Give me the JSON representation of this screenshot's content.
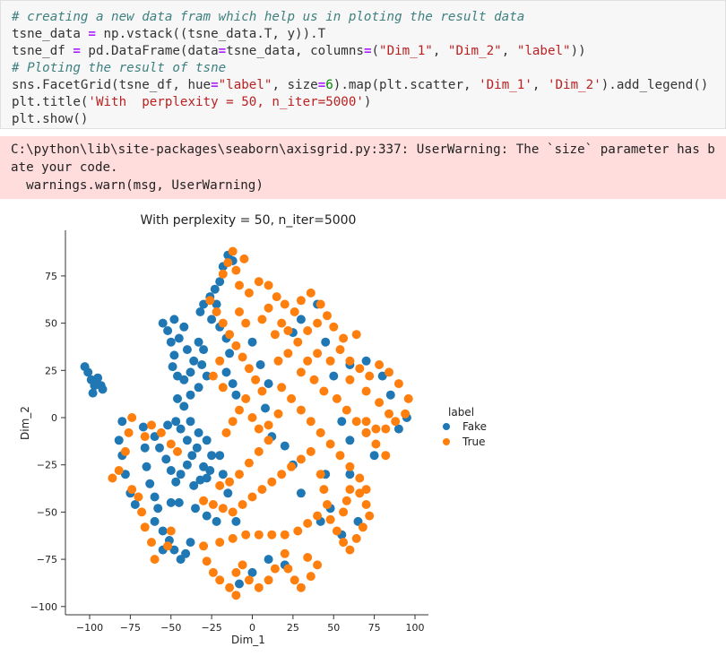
{
  "code_cell": {
    "line1": "# creating a new data fram which help us in ploting the result data",
    "line2_a": "tsne_data ",
    "line2_op": "=",
    "line2_b": " np.vstack((tsne_data.T, y)).T",
    "line3_a": "tsne_df ",
    "line3_op": "=",
    "line3_b": " pd.DataFrame(data",
    "line3_op2": "=",
    "line3_c": "tsne_data, columns",
    "line3_op3": "=",
    "line3_d": "(",
    "line3_s1": "\"Dim_1\"",
    "line3_e": ", ",
    "line3_s2": "\"Dim_2\"",
    "line3_f": ", ",
    "line3_s3": "\"label\"",
    "line3_g": "))",
    "line4": "# Ploting the result of tsne",
    "line5_a": "sns.FacetGrid(tsne_df, hue",
    "line5_op": "=",
    "line5_s1": "\"label\"",
    "line5_b": ", size",
    "line5_op2": "=",
    "line5_n": "6",
    "line5_c": ").map(plt.scatter, ",
    "line5_s2": "'Dim_1'",
    "line5_d": ", ",
    "line5_s3": "'Dim_2'",
    "line5_e": ").add_legend()",
    "line6_a": "plt.title(",
    "line6_s": "'With  perplexity = 50, n_iter=5000'",
    "line6_b": ")",
    "line7": "plt.show()"
  },
  "stderr": {
    "line1": "C:\\python\\lib\\site-packages\\seaborn\\axisgrid.py:337: UserWarning: The `size` parameter has b",
    "line2": "ate your code.",
    "line3": "  warnings.warn(msg, UserWarning)"
  },
  "chart_data": {
    "type": "scatter",
    "title": "With  perplexity = 50, n_iter=5000",
    "xlabel": "Dim_1",
    "ylabel": "Dim_2",
    "xlim": [
      -110,
      110
    ],
    "ylim": [
      -103,
      93
    ],
    "xticks": [
      -100,
      -75,
      -50,
      -25,
      0,
      25,
      50,
      75,
      100
    ],
    "xtick_labels": [
      "−100",
      "−75",
      "−50",
      "−25",
      "0",
      "25",
      "50",
      "75",
      "100"
    ],
    "yticks": [
      -100,
      -75,
      -50,
      -25,
      0,
      25,
      50,
      75
    ],
    "ytick_labels": [
      "−100",
      "−75",
      "−50",
      "−25",
      "0",
      "25",
      "50",
      "75"
    ],
    "grid": false,
    "legend_title": "label",
    "legend_placement": "right",
    "series": [
      {
        "name": "Fake",
        "color": "#1f77b4",
        "points": [
          [
            -103,
            27
          ],
          [
            -101,
            24
          ],
          [
            -99,
            20
          ],
          [
            -97,
            17
          ],
          [
            -95,
            21
          ],
          [
            -93,
            17
          ],
          [
            -92,
            15
          ],
          [
            -98,
            13
          ],
          [
            -80,
            -2
          ],
          [
            -82,
            -12
          ],
          [
            -80,
            -20
          ],
          [
            -78,
            -30
          ],
          [
            -75,
            -40
          ],
          [
            -72,
            -46
          ],
          [
            -67,
            -5
          ],
          [
            -66,
            -16
          ],
          [
            -65,
            -26
          ],
          [
            -63,
            -35
          ],
          [
            -60,
            -42
          ],
          [
            -58,
            -48
          ],
          [
            -60,
            -55
          ],
          [
            -55,
            -60
          ],
          [
            -51,
            -65
          ],
          [
            -48,
            -70
          ],
          [
            -44,
            -75
          ],
          [
            -41,
            -72
          ],
          [
            -38,
            -66
          ],
          [
            -55,
            -70
          ],
          [
            -60,
            -10
          ],
          [
            -57,
            -16
          ],
          [
            -53,
            -22
          ],
          [
            -50,
            -28
          ],
          [
            -47,
            -34
          ],
          [
            -44,
            -30
          ],
          [
            -40,
            -25
          ],
          [
            -37,
            -20
          ],
          [
            -34,
            -16
          ],
          [
            -30,
            -26
          ],
          [
            -36,
            -36
          ],
          [
            -32,
            -33
          ],
          [
            -28,
            -32
          ],
          [
            -40,
            -12
          ],
          [
            -44,
            -6
          ],
          [
            -47,
            -2
          ],
          [
            -52,
            -4
          ],
          [
            -38,
            -2
          ],
          [
            -33,
            -8
          ],
          [
            -28,
            -12
          ],
          [
            -25,
            -20
          ],
          [
            -26,
            -28
          ],
          [
            -55,
            50
          ],
          [
            -52,
            46
          ],
          [
            -50,
            40
          ],
          [
            -48,
            33
          ],
          [
            -49,
            27
          ],
          [
            -46,
            22
          ],
          [
            -42,
            20
          ],
          [
            -38,
            24
          ],
          [
            -36,
            30
          ],
          [
            -40,
            36
          ],
          [
            -45,
            42
          ],
          [
            -48,
            52
          ],
          [
            -42,
            48
          ],
          [
            -33,
            40
          ],
          [
            -30,
            36
          ],
          [
            -31,
            28
          ],
          [
            -28,
            22
          ],
          [
            -33,
            16
          ],
          [
            -38,
            12
          ],
          [
            -42,
            6
          ],
          [
            -46,
            10
          ],
          [
            -32,
            56
          ],
          [
            -30,
            60
          ],
          [
            -26,
            64
          ],
          [
            -23,
            68
          ],
          [
            -20,
            72
          ],
          [
            -18,
            80
          ],
          [
            -15,
            86
          ],
          [
            -12,
            83
          ],
          [
            -22,
            60
          ],
          [
            -25,
            52
          ],
          [
            -20,
            48
          ],
          [
            -16,
            42
          ],
          [
            -14,
            34
          ],
          [
            -16,
            24
          ],
          [
            -12,
            18
          ],
          [
            -10,
            12
          ],
          [
            -50,
            -45
          ],
          [
            -45,
            -45
          ],
          [
            -35,
            -48
          ],
          [
            -28,
            -52
          ],
          [
            -22,
            -55
          ],
          [
            -15,
            -40
          ],
          [
            -18,
            -30
          ],
          [
            -20,
            -20
          ],
          [
            -10,
            -55
          ],
          [
            0,
            -82
          ],
          [
            -8,
            -88
          ],
          [
            10,
            -75
          ],
          [
            20,
            -78
          ],
          [
            0,
            40
          ],
          [
            5,
            28
          ],
          [
            10,
            18
          ],
          [
            8,
            5
          ],
          [
            12,
            -10
          ],
          [
            20,
            -15
          ],
          [
            25,
            -25
          ],
          [
            30,
            -40
          ],
          [
            42,
            -55
          ],
          [
            55,
            -62
          ],
          [
            48,
            -48
          ],
          [
            60,
            -30
          ],
          [
            65,
            -55
          ],
          [
            25,
            45
          ],
          [
            30,
            52
          ],
          [
            40,
            60
          ],
          [
            45,
            40
          ],
          [
            50,
            22
          ],
          [
            60,
            28
          ],
          [
            70,
            30
          ],
          [
            80,
            22
          ],
          [
            85,
            12
          ],
          [
            95,
            0
          ],
          [
            90,
            -6
          ],
          [
            70,
            -8
          ],
          [
            60,
            -12
          ],
          [
            55,
            -2
          ],
          [
            45,
            -30
          ],
          [
            75,
            -20
          ]
        ]
      },
      {
        "name": "True",
        "color": "#ff7f0e",
        "points": [
          [
            -12,
            88
          ],
          [
            -15,
            82
          ],
          [
            -10,
            78
          ],
          [
            -5,
            84
          ],
          [
            -18,
            76
          ],
          [
            -8,
            70
          ],
          [
            -2,
            66
          ],
          [
            4,
            72
          ],
          [
            10,
            70
          ],
          [
            15,
            64
          ],
          [
            20,
            60
          ],
          [
            26,
            56
          ],
          [
            30,
            62
          ],
          [
            36,
            66
          ],
          [
            42,
            60
          ],
          [
            46,
            54
          ],
          [
            50,
            48
          ],
          [
            40,
            50
          ],
          [
            34,
            46
          ],
          [
            28,
            40
          ],
          [
            22,
            34
          ],
          [
            16,
            30
          ],
          [
            -26,
            62
          ],
          [
            -22,
            56
          ],
          [
            -18,
            50
          ],
          [
            -14,
            44
          ],
          [
            -10,
            38
          ],
          [
            -6,
            32
          ],
          [
            -2,
            26
          ],
          [
            2,
            20
          ],
          [
            6,
            14
          ],
          [
            -4,
            10
          ],
          [
            -8,
            4
          ],
          [
            -12,
            -2
          ],
          [
            -16,
            -8
          ],
          [
            0,
            0
          ],
          [
            4,
            -6
          ],
          [
            10,
            -4
          ],
          [
            16,
            2
          ],
          [
            -20,
            30
          ],
          [
            -24,
            22
          ],
          [
            -18,
            16
          ],
          [
            18,
            16
          ],
          [
            24,
            10
          ],
          [
            30,
            4
          ],
          [
            36,
            -2
          ],
          [
            42,
            -8
          ],
          [
            48,
            -14
          ],
          [
            54,
            -20
          ],
          [
            60,
            -26
          ],
          [
            66,
            -32
          ],
          [
            70,
            -38
          ],
          [
            30,
            24
          ],
          [
            38,
            20
          ],
          [
            44,
            14
          ],
          [
            52,
            10
          ],
          [
            58,
            4
          ],
          [
            64,
            -2
          ],
          [
            70,
            -8
          ],
          [
            76,
            -14
          ],
          [
            82,
            -20
          ],
          [
            60,
            20
          ],
          [
            70,
            14
          ],
          [
            78,
            8
          ],
          [
            84,
            2
          ],
          [
            60,
            30
          ],
          [
            66,
            26
          ],
          [
            72,
            22
          ],
          [
            78,
            28
          ],
          [
            84,
            24
          ],
          [
            90,
            18
          ],
          [
            96,
            10
          ],
          [
            94,
            2
          ],
          [
            88,
            -2
          ],
          [
            82,
            -6
          ],
          [
            76,
            -6
          ],
          [
            70,
            -2
          ],
          [
            -74,
            0
          ],
          [
            -76,
            -8
          ],
          [
            -78,
            -18
          ],
          [
            -82,
            -28
          ],
          [
            -86,
            -32
          ],
          [
            -74,
            -38
          ],
          [
            -70,
            -42
          ],
          [
            -68,
            -50
          ],
          [
            -66,
            -58
          ],
          [
            -62,
            -66
          ],
          [
            -60,
            -75
          ],
          [
            -50,
            -60
          ],
          [
            -52,
            -68
          ],
          [
            -66,
            -10
          ],
          [
            -62,
            -4
          ],
          [
            -56,
            -8
          ],
          [
            -50,
            -14
          ],
          [
            -46,
            -18
          ],
          [
            -30,
            -68
          ],
          [
            -28,
            -76
          ],
          [
            -24,
            -82
          ],
          [
            -20,
            -86
          ],
          [
            -14,
            -90
          ],
          [
            -10,
            -94
          ],
          [
            -20,
            -66
          ],
          [
            -12,
            -64
          ],
          [
            -4,
            -62
          ],
          [
            4,
            -62
          ],
          [
            12,
            -62
          ],
          [
            20,
            -62
          ],
          [
            28,
            -60
          ],
          [
            34,
            -56
          ],
          [
            40,
            -52
          ],
          [
            20,
            -72
          ],
          [
            22,
            -80
          ],
          [
            26,
            -86
          ],
          [
            30,
            -90
          ],
          [
            36,
            -84
          ],
          [
            40,
            -78
          ],
          [
            34,
            -74
          ],
          [
            -10,
            -82
          ],
          [
            -6,
            -78
          ],
          [
            -2,
            -86
          ],
          [
            4,
            -90
          ],
          [
            10,
            -86
          ],
          [
            14,
            -80
          ],
          [
            -30,
            -44
          ],
          [
            -24,
            -46
          ],
          [
            -18,
            -48
          ],
          [
            -12,
            -50
          ],
          [
            -6,
            -46
          ],
          [
            0,
            -42
          ],
          [
            6,
            -38
          ],
          [
            12,
            -34
          ],
          [
            18,
            -30
          ],
          [
            24,
            -26
          ],
          [
            30,
            -22
          ],
          [
            36,
            -18
          ],
          [
            -20,
            -36
          ],
          [
            -14,
            -34
          ],
          [
            -8,
            -30
          ],
          [
            -2,
            -24
          ],
          [
            4,
            -18
          ],
          [
            10,
            -12
          ],
          [
            42,
            -30
          ],
          [
            44,
            -38
          ],
          [
            46,
            -46
          ],
          [
            48,
            -54
          ],
          [
            52,
            -60
          ],
          [
            56,
            -66
          ],
          [
            60,
            -70
          ],
          [
            56,
            -50
          ],
          [
            58,
            -44
          ],
          [
            60,
            -38
          ],
          [
            66,
            -40
          ],
          [
            70,
            -46
          ],
          [
            72,
            -52
          ],
          [
            68,
            -58
          ],
          [
            64,
            -64
          ],
          [
            14,
            44
          ],
          [
            18,
            50
          ],
          [
            22,
            46
          ],
          [
            6,
            52
          ],
          [
            10,
            58
          ],
          [
            -4,
            50
          ],
          [
            -8,
            56
          ],
          [
            34,
            30
          ],
          [
            40,
            34
          ],
          [
            48,
            30
          ],
          [
            54,
            36
          ],
          [
            56,
            42
          ],
          [
            64,
            44
          ]
        ]
      }
    ]
  }
}
